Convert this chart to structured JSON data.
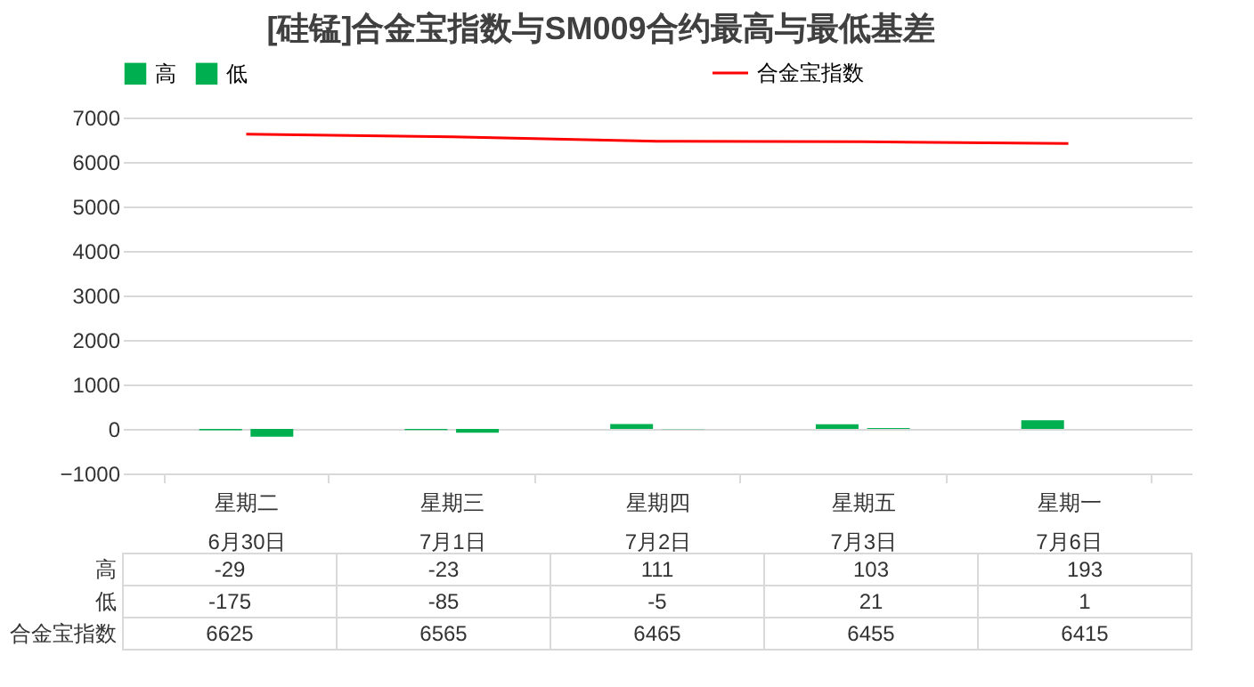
{
  "chart_data": {
    "type": "bar",
    "title": "[硅锰]合金宝指数与SM009合约最高与最低基差",
    "categories": [
      "星期二\n6月30日",
      "星期三\n7月1日",
      "星期四\n7月2日",
      "星期五\n7月3日",
      "星期一\n7月6日"
    ],
    "series": [
      {
        "name": "高",
        "type": "bar",
        "color": "#00b050",
        "values": [
          -29,
          -23,
          111,
          103,
          193
        ]
      },
      {
        "name": "低",
        "type": "bar",
        "color": "#00b050",
        "values": [
          -175,
          -85,
          -5,
          21,
          1
        ]
      },
      {
        "name": "合金宝指数",
        "type": "line",
        "color": "#ff0000",
        "values": [
          6625,
          6565,
          6465,
          6455,
          6415
        ]
      }
    ],
    "ylim": [
      -1000,
      7000
    ],
    "yticks": [
      -1000,
      0,
      1000,
      2000,
      3000,
      4000,
      5000,
      6000,
      7000
    ],
    "grid": "y",
    "legend": "top",
    "data_labels": true
  }
}
